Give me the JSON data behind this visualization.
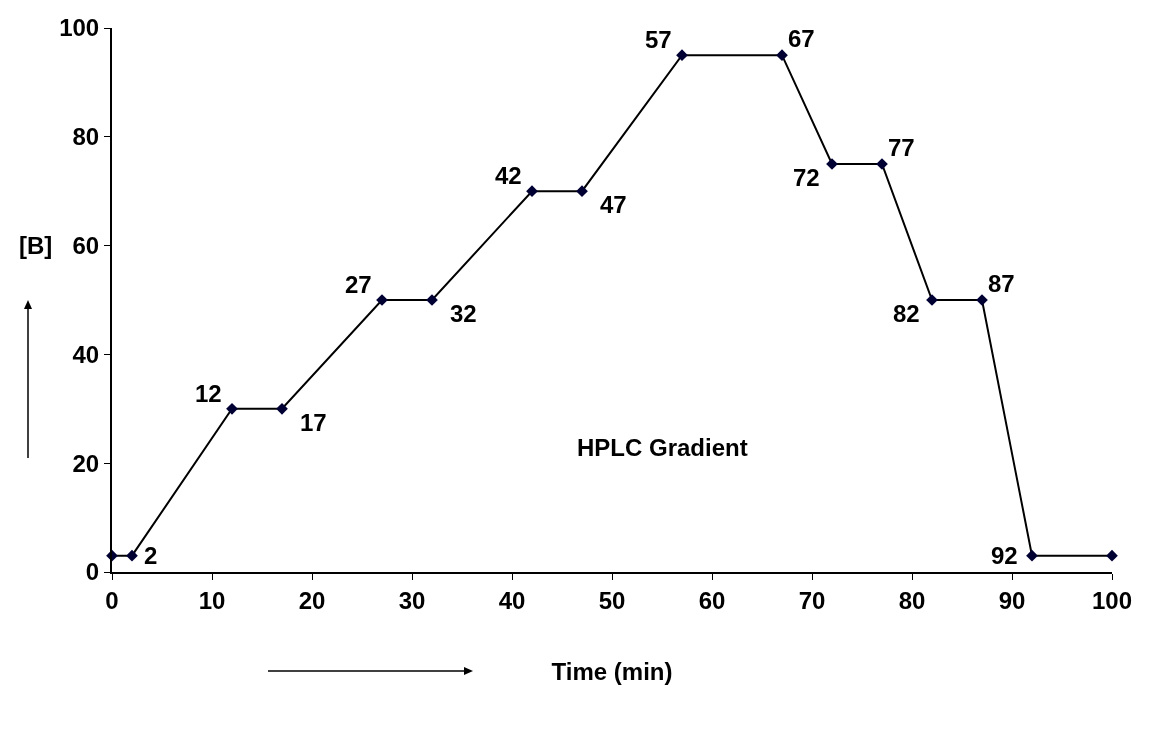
{
  "chart_data": {
    "type": "line",
    "xlabel": "Time (min)",
    "ylabel": "[B]",
    "annotations": [
      "HPLC Gradient",
      {
        "text": "2",
        "x": 2,
        "y": 3
      },
      {
        "text": "12",
        "x": 12,
        "y": 30
      },
      {
        "text": "17",
        "x": 17,
        "y": 30
      },
      {
        "text": "27",
        "x": 27,
        "y": 50
      },
      {
        "text": "32",
        "x": 32,
        "y": 50
      },
      {
        "text": "42",
        "x": 42,
        "y": 70
      },
      {
        "text": "47",
        "x": 47,
        "y": 70
      },
      {
        "text": "57",
        "x": 57,
        "y": 95
      },
      {
        "text": "67",
        "x": 67,
        "y": 95
      },
      {
        "text": "72",
        "x": 72,
        "y": 75
      },
      {
        "text": "77",
        "x": 77,
        "y": 75
      },
      {
        "text": "82",
        "x": 82,
        "y": 50
      },
      {
        "text": "87",
        "x": 87,
        "y": 50
      },
      {
        "text": "92",
        "x": 92,
        "y": 3
      }
    ],
    "x": [
      0,
      2,
      12,
      17,
      27,
      32,
      42,
      47,
      57,
      67,
      72,
      77,
      82,
      87,
      92,
      100
    ],
    "series": [
      {
        "color": "#000000",
        "values": [
          3,
          3,
          30,
          30,
          50,
          50,
          70,
          70,
          95,
          95,
          75,
          75,
          50,
          50,
          3,
          3
        ]
      }
    ],
    "xlim": [
      0,
      100
    ],
    "xticks": [
      0,
      10,
      20,
      30,
      40,
      50,
      60,
      70,
      80,
      90,
      100
    ],
    "ylim": [
      0,
      100
    ],
    "yticks": [
      0,
      20,
      40,
      60,
      80,
      100
    ],
    "grid": false,
    "marker": "diamond",
    "line_style": "solid"
  }
}
